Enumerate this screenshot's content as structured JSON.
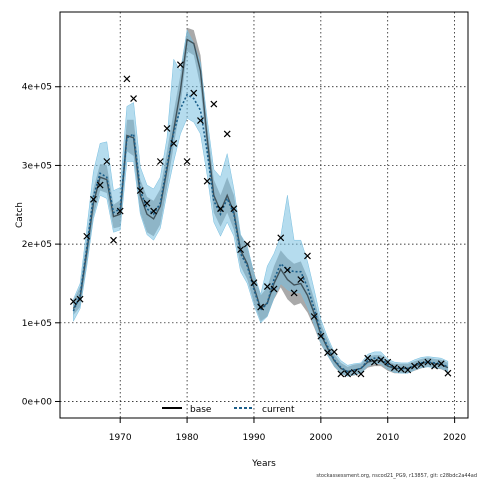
{
  "chart_data": {
    "type": "line",
    "xlabel": "Years",
    "ylabel": "Catch",
    "xlim": [
      1961,
      2022
    ],
    "ylim": [
      -21000,
      495000
    ],
    "x_ticks": [
      1970,
      1980,
      1990,
      2000,
      2010,
      2020
    ],
    "y_ticks": [
      0,
      100000,
      200000,
      300000,
      400000
    ],
    "y_tick_labels": [
      "0e+00",
      "1e+05",
      "2e+05",
      "3e+05",
      "4e+05"
    ],
    "grid": true,
    "legend_position": "bottom-center",
    "legend": [
      {
        "name": "base",
        "style": "solid",
        "color": "#000000"
      },
      {
        "name": "current",
        "style": "dotted",
        "color": "#1a5e8a"
      }
    ],
    "colors": {
      "base_band": "#8c8c8c",
      "current_band": "#79bfe0",
      "current_line": "#1a5e8a",
      "observed_marker": "#000000"
    },
    "footer": "stockassessment.org, nscod21_PG9, r13857, git: c28bdc2a44ad",
    "years": [
      1963,
      1964,
      1965,
      1966,
      1967,
      1968,
      1969,
      1970,
      1971,
      1972,
      1973,
      1974,
      1975,
      1976,
      1977,
      1978,
      1979,
      1980,
      1981,
      1982,
      1983,
      1984,
      1985,
      1986,
      1987,
      1988,
      1989,
      1990,
      1991,
      1992,
      1993,
      1994,
      1995,
      1996,
      1997,
      1998,
      1999,
      2000,
      2001,
      2002,
      2003,
      2004,
      2005,
      2006,
      2007,
      2008,
      2009,
      2010,
      2011,
      2012,
      2013,
      2014,
      2015,
      2016,
      2017,
      2018,
      2019
    ],
    "series": [
      {
        "name": "base",
        "estimate": [
          118000,
          132000,
          190000,
          252000,
          285000,
          282000,
          235000,
          238000,
          338000,
          335000,
          262000,
          238000,
          232000,
          248000,
          295000,
          345000,
          395000,
          460000,
          455000,
          420000,
          335000,
          262000,
          242000,
          262000,
          240000,
          192000,
          175000,
          145000,
          118000,
          125000,
          150000,
          168000,
          155000,
          148000,
          150000,
          135000,
          112000,
          85000,
          68000,
          52000,
          42000,
          38000,
          40000,
          42000,
          50000,
          52000,
          52000,
          45000,
          42000,
          42000,
          42000,
          45000,
          48000,
          50000,
          48000,
          47000,
          43000
        ],
        "lower": [
          110000,
          120000,
          175000,
          235000,
          268000,
          265000,
          220000,
          222000,
          318000,
          312000,
          240000,
          215000,
          210000,
          225000,
          272000,
          325000,
          375000,
          445000,
          440000,
          400000,
          315000,
          240000,
          222000,
          240000,
          218000,
          172000,
          155000,
          125000,
          102000,
          108000,
          130000,
          145000,
          130000,
          122000,
          125000,
          113000,
          94000,
          72000,
          58000,
          44000,
          35000,
          32000,
          33000,
          36000,
          43000,
          45000,
          45000,
          39000,
          36000,
          36000,
          36000,
          39000,
          42000,
          44000,
          42000,
          41000,
          37000
        ],
        "upper": [
          128000,
          146000,
          208000,
          270000,
          302000,
          300000,
          250000,
          256000,
          358000,
          358000,
          282000,
          260000,
          255000,
          270000,
          318000,
          368000,
          415000,
          475000,
          472000,
          440000,
          352000,
          282000,
          262000,
          285000,
          262000,
          212000,
          196000,
          165000,
          135000,
          145000,
          172000,
          192000,
          182000,
          175000,
          178000,
          158000,
          130000,
          98000,
          79000,
          60000,
          49000,
          44000,
          47000,
          48000,
          57000,
          59000,
          59000,
          51000,
          48000,
          48000,
          48000,
          51000,
          54000,
          56000,
          54000,
          53000,
          49000
        ]
      },
      {
        "name": "current",
        "estimate": [
          115000,
          135000,
          195000,
          260000,
          290000,
          285000,
          240000,
          245000,
          335000,
          340000,
          268000,
          245000,
          238000,
          252000,
          300000,
          342000,
          372000,
          390000,
          385000,
          370000,
          318000,
          255000,
          238000,
          258000,
          238000,
          188000,
          172000,
          142000,
          116000,
          125000,
          155000,
          175000,
          168000,
          165000,
          165000,
          145000,
          118000,
          88000,
          70000,
          53000,
          43000,
          38000,
          40000,
          42000,
          52000,
          55000,
          55000,
          47000,
          43000,
          42000,
          42000,
          46000,
          49000,
          50000,
          49000,
          48000,
          44000
        ],
        "lower": [
          102000,
          118000,
          172000,
          232000,
          262000,
          258000,
          215000,
          218000,
          305000,
          305000,
          238000,
          212000,
          205000,
          220000,
          265000,
          305000,
          340000,
          360000,
          355000,
          340000,
          288000,
          228000,
          210000,
          228000,
          210000,
          165000,
          150000,
          122000,
          100000,
          108000,
          132000,
          150000,
          142000,
          138000,
          138000,
          120000,
          98000,
          74000,
          59000,
          45000,
          36000,
          32000,
          34000,
          36000,
          45000,
          48000,
          48000,
          41000,
          37000,
          36000,
          36000,
          40000,
          43000,
          44000,
          43000,
          42000,
          38000
        ],
        "upper": [
          130000,
          150000,
          220000,
          292000,
          328000,
          330000,
          268000,
          272000,
          375000,
          380000,
          298000,
          275000,
          270000,
          285000,
          335000,
          435000,
          420000,
          472000,
          455000,
          430000,
          360000,
          295000,
          285000,
          315000,
          270000,
          212000,
          198000,
          162000,
          136000,
          172000,
          188000,
          210000,
          262000,
          205000,
          205000,
          178000,
          142000,
          104000,
          82000,
          63000,
          52000,
          46000,
          48000,
          49000,
          60000,
          63000,
          63000,
          54000,
          50000,
          49000,
          49000,
          53000,
          56000,
          57000,
          56000,
          55000,
          51000
        ]
      }
    ],
    "observed_catch": [
      127000,
      130000,
      210000,
      257000,
      275000,
      305000,
      205000,
      242000,
      410000,
      385000,
      268000,
      252000,
      242000,
      305000,
      347000,
      328000,
      428000,
      305000,
      392000,
      357000,
      280000,
      378000,
      245000,
      340000,
      245000,
      193000,
      200000,
      151000,
      120000,
      146000,
      143000,
      208000,
      167000,
      138000,
      155000,
      185000,
      108000,
      83000,
      62000,
      63000,
      35000,
      35000,
      37000,
      35000,
      55000,
      50000,
      53000,
      50000,
      43000,
      41000,
      40000,
      45000,
      47000,
      50000,
      45000,
      48000,
      36000
    ]
  }
}
